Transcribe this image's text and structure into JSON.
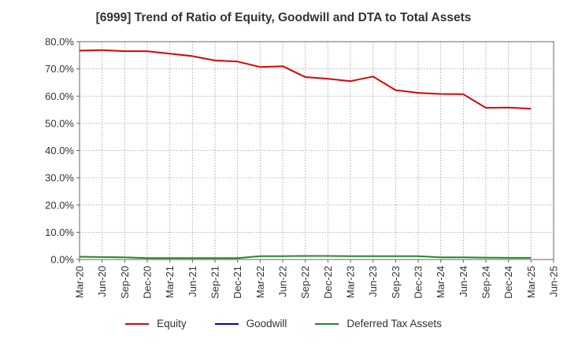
{
  "chart_data": {
    "type": "line",
    "title": "[6999]  Trend of Ratio of Equity, Goodwill and DTA to Total Assets",
    "xlabel": "",
    "ylabel": "",
    "ylim": [
      0,
      80
    ],
    "y_ticks": [
      0,
      10,
      20,
      30,
      40,
      50,
      60,
      70,
      80
    ],
    "y_tick_labels": [
      "0.0%",
      "10.0%",
      "20.0%",
      "30.0%",
      "40.0%",
      "50.0%",
      "60.0%",
      "70.0%",
      "80.0%"
    ],
    "categories": [
      "Mar-20",
      "Jun-20",
      "Sep-20",
      "Dec-20",
      "Mar-21",
      "Jun-21",
      "Sep-21",
      "Dec-21",
      "Mar-22",
      "Jun-22",
      "Sep-22",
      "Dec-22",
      "Mar-23",
      "Jun-23",
      "Sep-23",
      "Dec-23",
      "Mar-24",
      "Jun-24",
      "Sep-24",
      "Dec-24",
      "Mar-25",
      "Jun-25"
    ],
    "grid": true,
    "legend_position": "bottom",
    "series": [
      {
        "name": "Equity",
        "color": "#dd0000",
        "values": [
          76.7,
          76.9,
          76.5,
          76.5,
          75.6,
          74.7,
          73.1,
          72.7,
          70.7,
          71.0,
          67.0,
          66.4,
          65.5,
          67.2,
          62.2,
          61.2,
          60.8,
          60.7,
          55.7,
          55.8,
          55.4,
          null
        ]
      },
      {
        "name": "Goodwill",
        "color": "#0000cc",
        "values": [
          null,
          null,
          null,
          null,
          null,
          null,
          null,
          null,
          null,
          null,
          null,
          null,
          null,
          null,
          null,
          null,
          null,
          null,
          null,
          null,
          null,
          null
        ]
      },
      {
        "name": "Deferred Tax Assets",
        "color": "#228822",
        "values": [
          1.0,
          0.9,
          0.8,
          0.5,
          0.5,
          0.5,
          0.5,
          0.5,
          1.2,
          1.2,
          1.3,
          1.3,
          1.2,
          1.2,
          1.2,
          1.2,
          0.8,
          0.8,
          0.7,
          0.6,
          0.6,
          null
        ]
      }
    ]
  }
}
